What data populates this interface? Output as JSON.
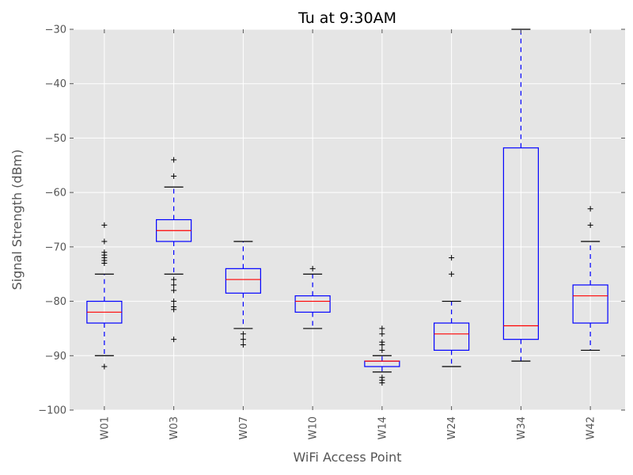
{
  "chart_data": {
    "type": "box",
    "title": "Tu at 9:30AM",
    "xlabel": "WiFi Access Point",
    "ylabel": "Signal Strength (dBm)",
    "ylim": [
      -100,
      -30
    ],
    "yticks": [
      -100,
      -90,
      -80,
      -70,
      -60,
      -50,
      -40,
      -30
    ],
    "ytick_labels": [
      "−100",
      "−90",
      "−80",
      "−70",
      "−60",
      "−50",
      "−40",
      "−30"
    ],
    "grid": true,
    "colors": {
      "background": "#e5e5e5",
      "grid": "#ffffff",
      "box": "#0000ff",
      "median": "#ff0000",
      "cap": "#000000",
      "flier": "#000000"
    },
    "categories": [
      "W01",
      "W03",
      "W07",
      "W10",
      "W14",
      "W24",
      "W34",
      "W42"
    ],
    "boxes": [
      {
        "label": "W01",
        "whislo": -90,
        "q1": -84,
        "med": -82,
        "q3": -80,
        "whishi": -75,
        "fliers": [
          -66,
          -69,
          -71,
          -71.5,
          -72,
          -72.5,
          -73,
          -92
        ]
      },
      {
        "label": "W03",
        "whislo": -75,
        "q1": -69,
        "med": -67,
        "q3": -65,
        "whishi": -59,
        "fliers": [
          -54,
          -57,
          -76,
          -77,
          -78,
          -80,
          -81,
          -81.5,
          -87
        ]
      },
      {
        "label": "W07",
        "whislo": -85,
        "q1": -78.5,
        "med": -76,
        "q3": -74,
        "whishi": -69,
        "fliers": [
          -86,
          -87,
          -88
        ]
      },
      {
        "label": "W10",
        "whislo": -85,
        "q1": -82,
        "med": -80,
        "q3": -79,
        "whishi": -75,
        "fliers": [
          -74
        ]
      },
      {
        "label": "W14",
        "whislo": -93,
        "q1": -92,
        "med": -91,
        "q3": -91,
        "whishi": -90,
        "fliers": [
          -85,
          -86,
          -87.5,
          -88,
          -89,
          -94,
          -94.5,
          -95
        ]
      },
      {
        "label": "W24",
        "whislo": -92,
        "q1": -89,
        "med": -86,
        "q3": -84,
        "whishi": -80,
        "fliers": [
          -72,
          -75
        ]
      },
      {
        "label": "W34",
        "whislo": -91,
        "q1": -87,
        "med": -84.5,
        "q3": -51.8,
        "whishi": -30,
        "fliers": []
      },
      {
        "label": "W42",
        "whislo": -89,
        "q1": -84,
        "med": -79,
        "q3": -77,
        "whishi": -69,
        "fliers": [
          -63,
          -66
        ]
      }
    ]
  }
}
